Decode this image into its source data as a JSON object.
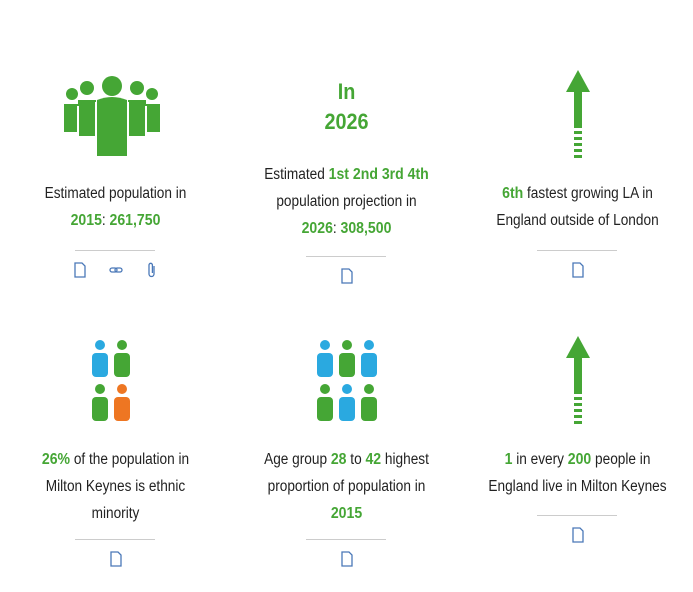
{
  "card1": {
    "label_a": "Estimated population in",
    "year": "2015",
    "sep": ": ",
    "value": "261,750"
  },
  "card2": {
    "big_1": "In",
    "big_2": "2026",
    "pre": "Estimated ",
    "ranks": "1st 2nd 3rd 4th",
    "line2": "population projection in",
    "year": "2026",
    "sep": ": ",
    "value": "308,500"
  },
  "card3": {
    "rank": "6th",
    "line1_rest": " fastest growing LA in",
    "line2": "England outside of London"
  },
  "card4": {
    "pct": "26%",
    "line1_rest": " of the population in",
    "line2": "Milton Keynes is ethnic",
    "line3": "minority"
  },
  "card5": {
    "pre": "Age group ",
    "a": "28",
    "mid": " to ",
    "b": "42",
    "line1_rest": " highest",
    "line2": "proportion of population in",
    "year": "2015"
  },
  "card6": {
    "n1": "1",
    "mid": " in every ",
    "n2": "200",
    "rest": " people in",
    "line2": "England live in Milton Keynes"
  },
  "colors": {
    "green": "#45a635",
    "blue": "#2aa9e0",
    "orange": "#ee7622",
    "icon_blue": "#4a78b8"
  }
}
